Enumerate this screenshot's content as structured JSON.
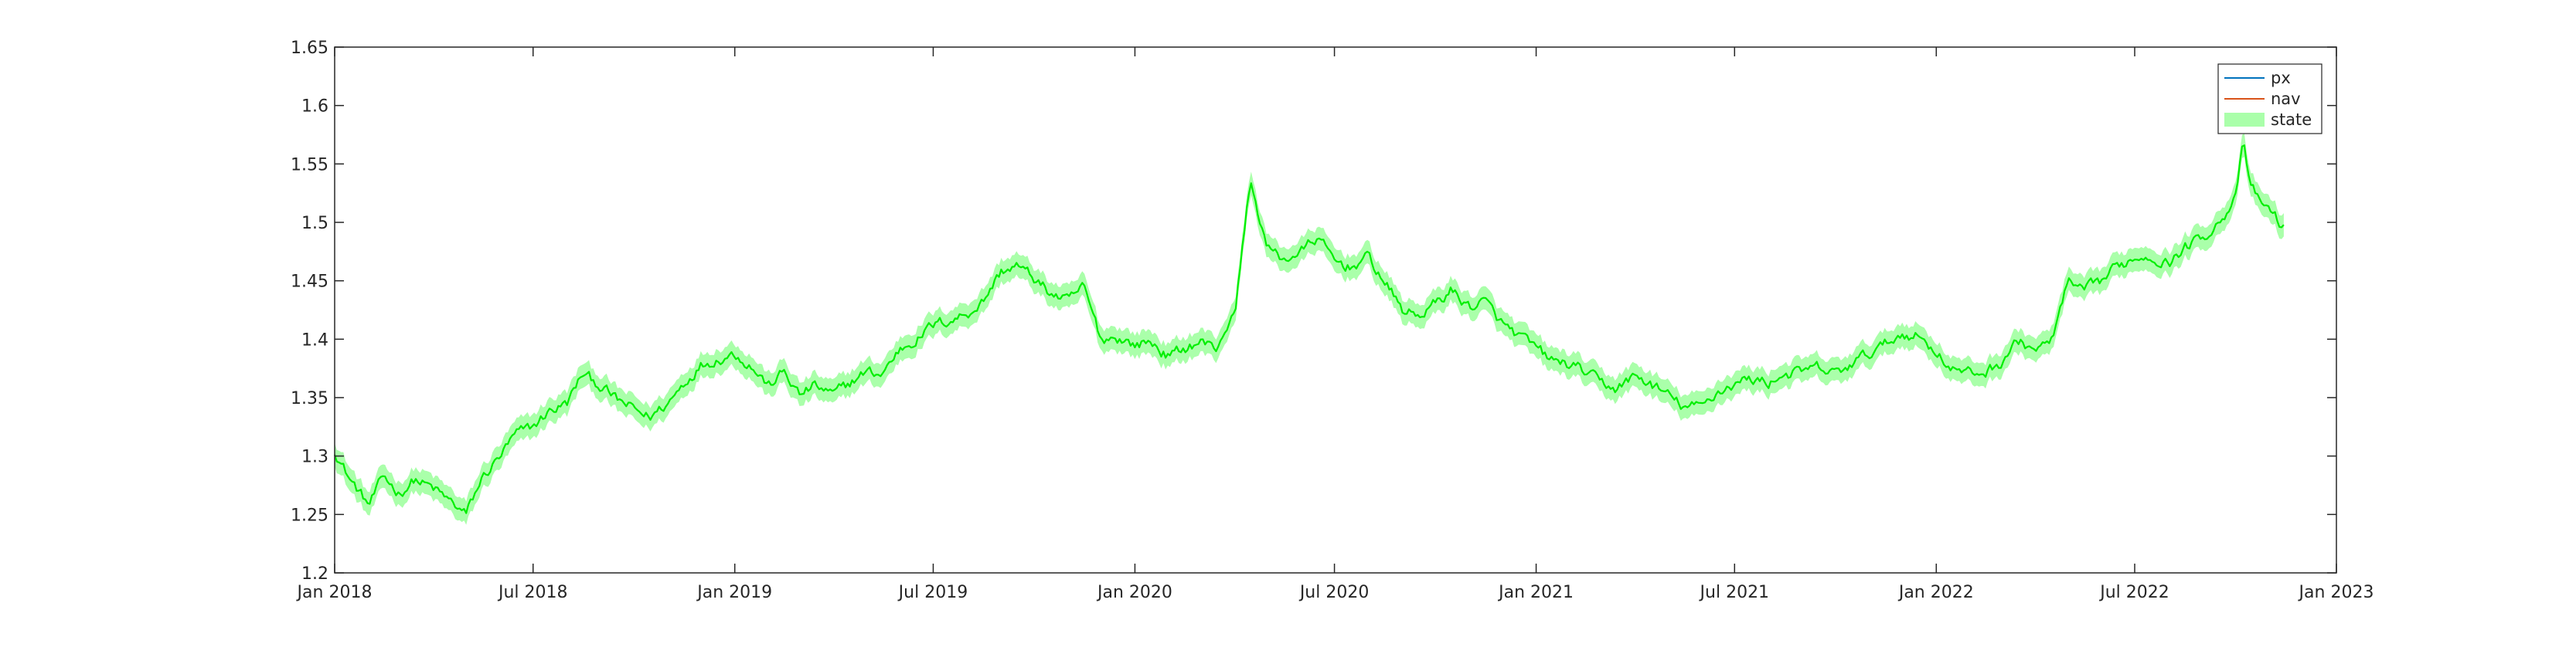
{
  "chart_data": {
    "type": "line",
    "title": "",
    "xlabel": "",
    "ylabel": "",
    "xlim": [
      "2018-01-01",
      "2023-01-01"
    ],
    "ylim": [
      1.2,
      1.65
    ],
    "x_tick_labels": [
      "Jan 2018",
      "Jul 2018",
      "Jan 2019",
      "Jul 2019",
      "Jan 2020",
      "Jul 2020",
      "Jan 2021",
      "Jul 2021",
      "Jan 2022",
      "Jul 2022",
      "Jan 2023"
    ],
    "x_tick_dates": [
      "2018-01-01",
      "2018-07-01",
      "2019-01-01",
      "2019-07-01",
      "2020-01-01",
      "2020-07-01",
      "2021-01-01",
      "2021-07-01",
      "2022-01-01",
      "2022-07-01",
      "2023-01-01"
    ],
    "y_tick_labels": [
      "1.2",
      "1.25",
      "1.3",
      "1.35",
      "1.4",
      "1.45",
      "1.5",
      "1.55",
      "1.6",
      "1.65"
    ],
    "y_ticks": [
      1.2,
      1.25,
      1.3,
      1.35,
      1.4,
      1.45,
      1.5,
      1.55,
      1.6,
      1.65
    ],
    "grid": false,
    "legend_position": "top-right",
    "legend": [
      {
        "label": "px",
        "kind": "line",
        "color": "#0072BD"
      },
      {
        "label": "nav",
        "kind": "line",
        "color": "#D95319"
      },
      {
        "label": "state",
        "kind": "band",
        "color": "#aaffaa"
      }
    ],
    "series": [
      {
        "name": "state",
        "color": "#00ee00",
        "band_color": "#aaffaa",
        "band_halfwidth": 0.01,
        "x": [
          "2018-01-01",
          "2018-01-15",
          "2018-02-01",
          "2018-02-15",
          "2018-03-01",
          "2018-03-15",
          "2018-04-01",
          "2018-04-15",
          "2018-05-01",
          "2018-05-15",
          "2018-06-01",
          "2018-06-15",
          "2018-07-01",
          "2018-07-15",
          "2018-08-01",
          "2018-08-15",
          "2018-09-01",
          "2018-09-15",
          "2018-10-01",
          "2018-10-15",
          "2018-11-01",
          "2018-11-15",
          "2018-12-01",
          "2018-12-15",
          "2019-01-01",
          "2019-01-15",
          "2019-02-01",
          "2019-02-15",
          "2019-03-01",
          "2019-03-15",
          "2019-04-01",
          "2019-04-15",
          "2019-05-01",
          "2019-05-15",
          "2019-06-01",
          "2019-06-15",
          "2019-07-01",
          "2019-07-15",
          "2019-08-01",
          "2019-08-15",
          "2019-09-01",
          "2019-09-15",
          "2019-10-01",
          "2019-10-15",
          "2019-11-01",
          "2019-11-15",
          "2019-12-01",
          "2019-12-15",
          "2020-01-01",
          "2020-01-15",
          "2020-02-01",
          "2020-02-15",
          "2020-03-01",
          "2020-03-15",
          "2020-03-25",
          "2020-04-01",
          "2020-04-15",
          "2020-05-01",
          "2020-05-15",
          "2020-06-01",
          "2020-06-15",
          "2020-07-01",
          "2020-07-15",
          "2020-08-01",
          "2020-08-15",
          "2020-09-01",
          "2020-09-15",
          "2020-10-01",
          "2020-10-15",
          "2020-11-01",
          "2020-11-15",
          "2020-12-01",
          "2020-12-15",
          "2021-01-01",
          "2021-01-15",
          "2021-02-01",
          "2021-02-15",
          "2021-03-01",
          "2021-03-15",
          "2021-04-01",
          "2021-04-15",
          "2021-05-01",
          "2021-05-15",
          "2021-06-01",
          "2021-06-15",
          "2021-07-01",
          "2021-07-15",
          "2021-08-01",
          "2021-08-15",
          "2021-09-01",
          "2021-09-15",
          "2021-10-01",
          "2021-10-15",
          "2021-11-01",
          "2021-11-15",
          "2021-12-01",
          "2021-12-15",
          "2022-01-01",
          "2022-01-15",
          "2022-02-01",
          "2022-02-15",
          "2022-03-01",
          "2022-03-15",
          "2022-04-01",
          "2022-04-15",
          "2022-05-01",
          "2022-05-15",
          "2022-06-01",
          "2022-06-15",
          "2022-07-01",
          "2022-07-15",
          "2022-08-01",
          "2022-08-15",
          "2022-09-01",
          "2022-09-15",
          "2022-10-01",
          "2022-10-08",
          "2022-10-15",
          "2022-11-01",
          "2022-11-15"
        ],
        "values": [
          1.305,
          1.28,
          1.258,
          1.282,
          1.268,
          1.28,
          1.272,
          1.262,
          1.25,
          1.28,
          1.3,
          1.318,
          1.325,
          1.338,
          1.345,
          1.37,
          1.36,
          1.348,
          1.34,
          1.333,
          1.345,
          1.362,
          1.378,
          1.383,
          1.388,
          1.378,
          1.36,
          1.372,
          1.352,
          1.36,
          1.352,
          1.362,
          1.372,
          1.37,
          1.392,
          1.4,
          1.412,
          1.416,
          1.422,
          1.432,
          1.458,
          1.463,
          1.452,
          1.44,
          1.432,
          1.445,
          1.4,
          1.402,
          1.395,
          1.398,
          1.385,
          1.392,
          1.398,
          1.392,
          1.412,
          1.42,
          1.535,
          1.478,
          1.468,
          1.475,
          1.487,
          1.467,
          1.462,
          1.47,
          1.45,
          1.425,
          1.42,
          1.43,
          1.442,
          1.428,
          1.432,
          1.413,
          1.403,
          1.392,
          1.382,
          1.378,
          1.372,
          1.362,
          1.358,
          1.368,
          1.362,
          1.352,
          1.342,
          1.342,
          1.355,
          1.362,
          1.366,
          1.363,
          1.37,
          1.372,
          1.375,
          1.37,
          1.378,
          1.388,
          1.395,
          1.405,
          1.403,
          1.39,
          1.375,
          1.37,
          1.372,
          1.38,
          1.398,
          1.392,
          1.395,
          1.448,
          1.44,
          1.45,
          1.462,
          1.47,
          1.472,
          1.465,
          1.478,
          1.488,
          1.5,
          1.52,
          1.568,
          1.528,
          1.51,
          1.495
        ]
      }
    ]
  }
}
